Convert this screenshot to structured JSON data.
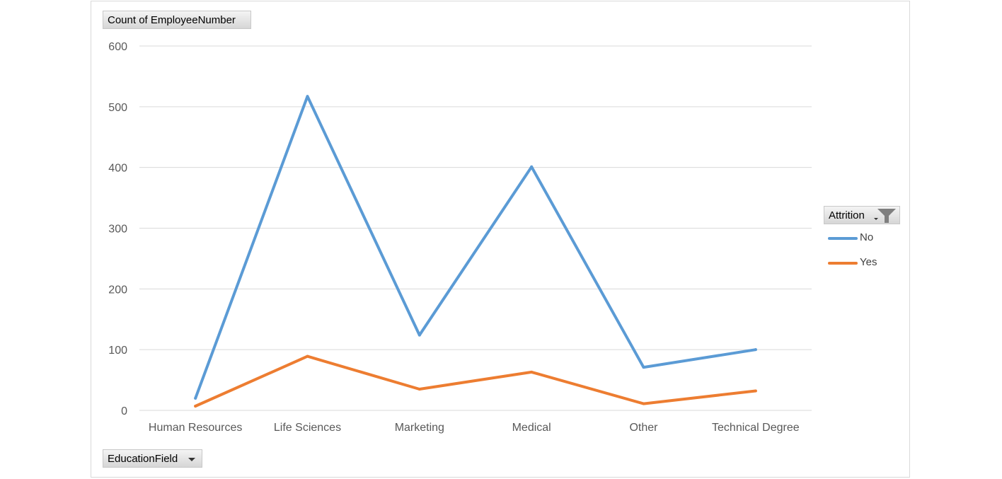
{
  "chart_data": {
    "type": "line",
    "ylabel": "Count of EmployeeNumber",
    "xlabel": "EducationField",
    "categories": [
      "Human Resources",
      "Life Sciences",
      "Marketing",
      "Medical",
      "Other",
      "Technical Degree"
    ],
    "series": [
      {
        "name": "No",
        "color": "#5b9bd5",
        "values": [
          20,
          517,
          124,
          401,
          71,
          100
        ]
      },
      {
        "name": "Yes",
        "color": "#ed7d31",
        "values": [
          7,
          89,
          35,
          63,
          11,
          32
        ]
      }
    ],
    "ylim": [
      0,
      600
    ],
    "yticks": [
      0,
      100,
      200,
      300,
      400,
      500,
      600
    ],
    "grid": true,
    "legend": {
      "title": "Attrition",
      "placement": "right"
    }
  }
}
